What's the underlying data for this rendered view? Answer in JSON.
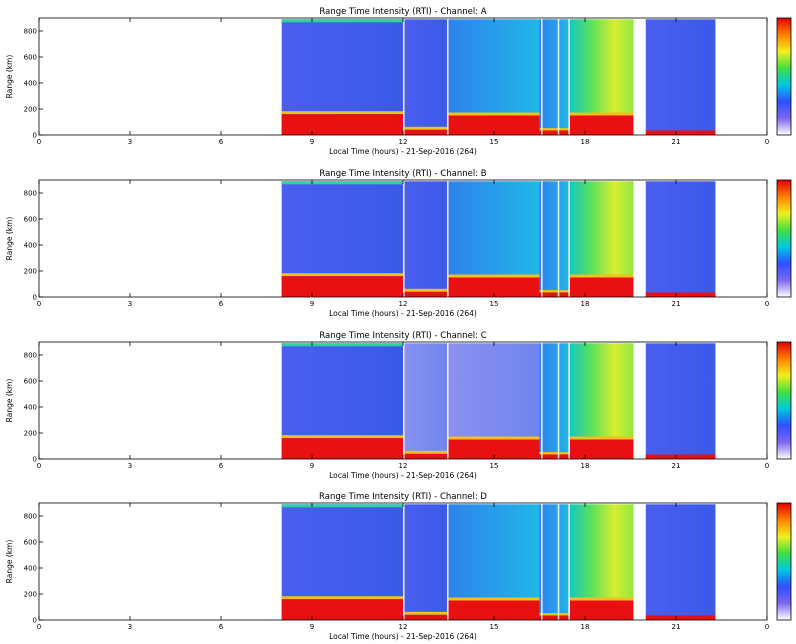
{
  "chart_data": [
    {
      "type": "heatmap",
      "title": "Range Time Intensity (RTI) - Channel: A",
      "xlabel": "Local Time (hours) - 21-Sep-2016 (264)",
      "ylabel": "Range (km)",
      "xticks": [
        "0",
        "3",
        "6",
        "9",
        "12",
        "15",
        "18",
        "21",
        "0"
      ],
      "yticks": [
        "0",
        "200",
        "400",
        "600",
        "800"
      ],
      "xlim": [
        0,
        24
      ],
      "ylim": [
        0,
        900
      ],
      "segments": [
        {
          "x": [
            8.0,
            12.0
          ],
          "base": "blue",
          "red": [
            30,
            160
          ],
          "top_strip": true
        },
        {
          "x": [
            12.0,
            13.5
          ],
          "base": "blue",
          "red": [
            0,
            40
          ],
          "top_strip": false
        },
        {
          "x": [
            13.5,
            16.5
          ],
          "base": "cyan",
          "red": [
            30,
            150
          ],
          "top_strip": false
        },
        {
          "x": [
            16.5,
            17.5
          ],
          "base": "cyan",
          "red": [
            0,
            30
          ],
          "top_strip": false
        },
        {
          "x": [
            17.5,
            19.6
          ],
          "base": "yellow",
          "red": [
            0,
            150
          ],
          "top_strip": false
        },
        {
          "x": [
            20.0,
            22.3
          ],
          "base": "blue",
          "red": null,
          "top_strip": false
        }
      ]
    },
    {
      "type": "heatmap",
      "title": "Range Time Intensity (RTI) - Channel: B",
      "xlabel": "Local Time (hours) - 21-Sep-2016 (264)",
      "ylabel": "Range (km)",
      "xticks": [
        "0",
        "3",
        "6",
        "9",
        "12",
        "15",
        "18",
        "21",
        "0"
      ],
      "yticks": [
        "0",
        "200",
        "400",
        "600",
        "800"
      ],
      "xlim": [
        0,
        24
      ],
      "ylim": [
        0,
        900
      ],
      "segments": [
        {
          "x": [
            8.0,
            12.0
          ],
          "base": "blue",
          "red": [
            30,
            160
          ],
          "top_strip": true
        },
        {
          "x": [
            12.0,
            13.5
          ],
          "base": "blue",
          "red": [
            0,
            40
          ],
          "top_strip": false
        },
        {
          "x": [
            13.5,
            16.5
          ],
          "base": "cyan",
          "red": [
            30,
            150
          ],
          "top_strip": false
        },
        {
          "x": [
            16.5,
            17.5
          ],
          "base": "cyan",
          "red": [
            0,
            30
          ],
          "top_strip": false
        },
        {
          "x": [
            17.5,
            19.6
          ],
          "base": "yellow",
          "red": [
            0,
            150
          ],
          "top_strip": false
        },
        {
          "x": [
            20.0,
            22.3
          ],
          "base": "blue",
          "red": null,
          "top_strip": false
        }
      ]
    },
    {
      "type": "heatmap",
      "title": "Range Time Intensity (RTI) - Channel: C",
      "xlabel": "Local Time (hours) - 21-Sep-2016 (264)",
      "ylabel": "Range (km)",
      "xticks": [
        "0",
        "3",
        "6",
        "9",
        "12",
        "15",
        "18",
        "21",
        "0"
      ],
      "yticks": [
        "0",
        "200",
        "400",
        "600",
        "800"
      ],
      "xlim": [
        0,
        24
      ],
      "ylim": [
        0,
        900
      ],
      "segments": [
        {
          "x": [
            8.0,
            12.0
          ],
          "base": "blue",
          "red": [
            30,
            160
          ],
          "top_strip": true
        },
        {
          "x": [
            12.0,
            13.5
          ],
          "base": "light",
          "red": [
            0,
            40
          ],
          "top_strip": false
        },
        {
          "x": [
            13.5,
            16.5
          ],
          "base": "light",
          "red": [
            30,
            150
          ],
          "top_strip": false
        },
        {
          "x": [
            16.5,
            17.5
          ],
          "base": "cyan",
          "red": [
            0,
            30
          ],
          "top_strip": false
        },
        {
          "x": [
            17.5,
            19.6
          ],
          "base": "yellow",
          "red": [
            0,
            150
          ],
          "top_strip": false
        },
        {
          "x": [
            20.0,
            22.3
          ],
          "base": "blue",
          "red": null,
          "top_strip": false
        }
      ]
    },
    {
      "type": "heatmap",
      "title": "Range Time Intensity (RTI) - Channel: D",
      "xlabel": "Local Time (hours) - 21-Sep-2016 (264)",
      "ylabel": "Range (km)",
      "xticks": [
        "0",
        "3",
        "6",
        "9",
        "12",
        "15",
        "18",
        "21",
        "0"
      ],
      "yticks": [
        "0",
        "200",
        "400",
        "600",
        "800"
      ],
      "xlim": [
        0,
        24
      ],
      "ylim": [
        0,
        900
      ],
      "segments": [
        {
          "x": [
            8.0,
            12.0
          ],
          "base": "blue",
          "red": [
            30,
            160
          ],
          "top_strip": true
        },
        {
          "x": [
            12.0,
            13.5
          ],
          "base": "blue",
          "red": [
            0,
            40
          ],
          "top_strip": false
        },
        {
          "x": [
            13.5,
            16.5
          ],
          "base": "cyan",
          "red": [
            30,
            150
          ],
          "top_strip": false
        },
        {
          "x": [
            16.5,
            17.5
          ],
          "base": "cyan",
          "red": [
            0,
            30
          ],
          "top_strip": false
        },
        {
          "x": [
            17.5,
            19.6
          ],
          "base": "yellow",
          "red": [
            0,
            150
          ],
          "top_strip": false
        },
        {
          "x": [
            20.0,
            22.3
          ],
          "base": "blue",
          "red": null,
          "top_strip": false
        }
      ]
    }
  ],
  "colorbar_stops": [
    "#ffffff",
    "#7b68ee",
    "#2f4fff",
    "#00c8e0",
    "#40e040",
    "#f0f020",
    "#ff8000",
    "#e00000"
  ]
}
